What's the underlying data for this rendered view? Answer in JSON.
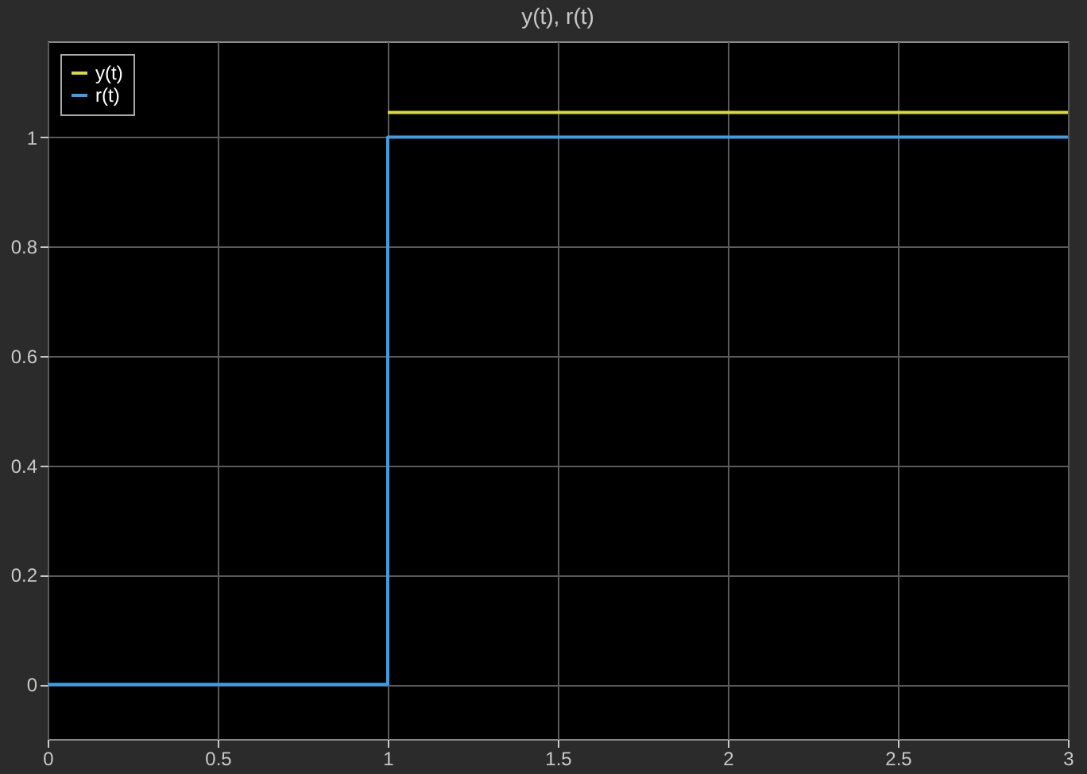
{
  "chart_data": {
    "type": "step",
    "title": "y(t), r(t)",
    "series": [
      {
        "name": "y(t)",
        "color": "#d9d93a",
        "x": [
          1,
          3
        ],
        "values": [
          1.045,
          1.045
        ]
      },
      {
        "name": "r(t)",
        "color": "#3a9ee8",
        "x": [
          0,
          1,
          3
        ],
        "values": [
          0,
          1,
          1
        ]
      }
    ],
    "xlim": [
      0,
      3
    ],
    "xticks": [
      0,
      0.5,
      1,
      1.5,
      2,
      2.5,
      3
    ],
    "ylim": [
      -0.1,
      1.175
    ],
    "yticks": [
      0,
      0.2,
      0.4,
      0.6,
      0.8,
      1
    ],
    "grid": true,
    "legend": "top left",
    "line_style": "solid"
  }
}
